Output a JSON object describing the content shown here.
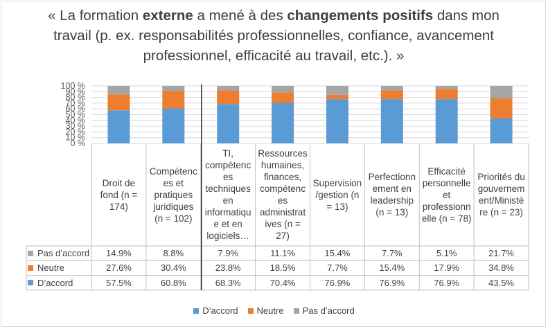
{
  "title": {
    "part1": "« La formation ",
    "bold1": "externe",
    "part2": " a mené à des ",
    "bold2": "changements positifs",
    "part3": " dans mon travail (p. ex. responsabilités professionnelles, confiance, avancement professionnel, efficacité au travail, etc.). »"
  },
  "chart_data": {
    "type": "bar",
    "stacked": true,
    "ylim": [
      0,
      100
    ],
    "yticks": [
      "0 %",
      "10 %",
      "20 %",
      "30 %",
      "40 %",
      "50 %",
      "60 %",
      "70 %",
      "80 %",
      "90 %",
      "100 %"
    ],
    "categories": [
      "Droit de fond (n = 174)",
      "Compétences et pratiques juridiques (n = 102)",
      "TI, compétences techniques en informatique et en logiciels…",
      "Ressources humaines, finances, compétences administratives (n = 27)",
      "Supervision/gestion (n = 13)",
      "Perfectionnement en leadership (n = 13)",
      "Efficacité personnelle et professionnelle (n = 78)",
      "Priorités du gouvernement/Ministère (n = 23)"
    ],
    "category_lines": [
      [
        "Droit de",
        "fond (n =",
        "174)"
      ],
      [
        "Compétenc",
        "es et",
        "pratiques",
        "juridiques",
        "(n = 102)"
      ],
      [
        "TI,",
        "compétenc",
        "es",
        "techniques",
        "en",
        "informatiqu",
        "e et en",
        "logiciels…"
      ],
      [
        "Ressources",
        "humaines,",
        "finances,",
        "compétenc",
        "es",
        "administrat",
        "ives (n =",
        "27)"
      ],
      [
        "Supervision",
        "/gestion (n",
        "= 13)"
      ],
      [
        "Perfectionn",
        "ement en",
        "leadership",
        "(n = 13)"
      ],
      [
        "Efficacité",
        "personnelle",
        "et",
        "professionn",
        "elle (n = 78)"
      ],
      [
        "Priorités du",
        "gouvernem",
        "ent/Ministè",
        "re (n = 23)"
      ]
    ],
    "series": [
      {
        "name": "D’accord",
        "color": "#5b9bd5",
        "values": [
          57.5,
          60.8,
          68.3,
          70.4,
          76.9,
          76.9,
          76.9,
          43.5
        ],
        "labels": [
          "57.5%",
          "60.8%",
          "68.3%",
          "70.4%",
          "76.9%",
          "76.9%",
          "76.9%",
          "43.5%"
        ]
      },
      {
        "name": "Neutre",
        "color": "#ed7d31",
        "values": [
          27.6,
          30.4,
          23.8,
          18.5,
          7.7,
          15.4,
          17.9,
          34.8
        ],
        "labels": [
          "27.6%",
          "30.4%",
          "23.8%",
          "18.5%",
          "7.7%",
          "15.4%",
          "17.9%",
          "34.8%"
        ]
      },
      {
        "name": "Pas d’accord",
        "color": "#a5a5a5",
        "values": [
          14.9,
          8.8,
          7.9,
          11.1,
          15.4,
          7.7,
          5.1,
          21.7
        ],
        "labels": [
          "14.9%",
          "8.8%",
          "7.9%",
          "11.1%",
          "15.4%",
          "7.7%",
          "5.1%",
          "21.7%"
        ]
      }
    ],
    "legend_position": "bottom",
    "grid": true
  }
}
